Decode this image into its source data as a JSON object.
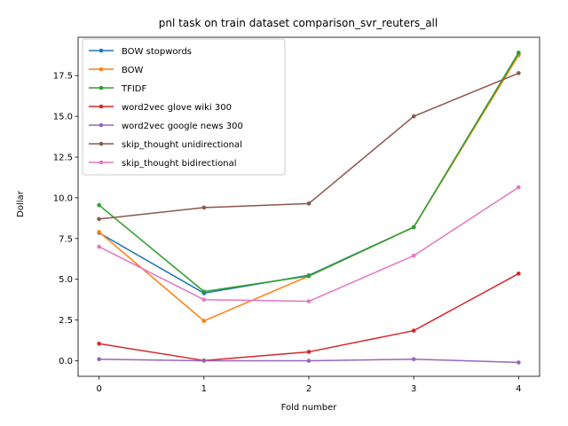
{
  "chart_data": {
    "type": "line",
    "title": "pnl task on train dataset comparison_svr_reuters_all",
    "xlabel": "Fold number",
    "ylabel": "Dollar",
    "x": [
      0,
      1,
      2,
      3,
      4
    ],
    "xticks": [
      "0",
      "1",
      "2",
      "3",
      "4"
    ],
    "yticks": [
      "0.0",
      "2.5",
      "5.0",
      "7.5",
      "10.0",
      "12.5",
      "15.0",
      "17.5"
    ],
    "xlim": [
      -0.2,
      4.2
    ],
    "ylim": [
      -0.95,
      19.85
    ],
    "grid": false,
    "legend_position": "upper-left",
    "series": [
      {
        "name": "BOW stopwords",
        "color": "#1f77b4",
        "values": [
          7.85,
          4.15,
          5.25,
          8.2,
          18.9
        ]
      },
      {
        "name": "BOW",
        "color": "#ff7f0e",
        "values": [
          7.9,
          2.45,
          5.2,
          8.2,
          18.75
        ]
      },
      {
        "name": "TFIDF",
        "color": "#2ca02c",
        "values": [
          9.55,
          4.25,
          5.2,
          8.2,
          18.9
        ]
      },
      {
        "name": "word2vec glove wiki 300",
        "color": "#d62728",
        "values": [
          1.05,
          0.02,
          0.55,
          1.85,
          5.35
        ]
      },
      {
        "name": "word2vec google news 300",
        "color": "#9467bd",
        "values": [
          0.1,
          0.0,
          0.0,
          0.1,
          -0.1
        ]
      },
      {
        "name": "skip_thought unidirectional",
        "color": "#8c564b",
        "values": [
          8.7,
          9.4,
          9.65,
          15.0,
          17.65
        ]
      },
      {
        "name": "skip_thought bidirectional",
        "color": "#e377c2",
        "values": [
          7.0,
          3.75,
          3.65,
          6.45,
          10.65
        ]
      }
    ]
  }
}
